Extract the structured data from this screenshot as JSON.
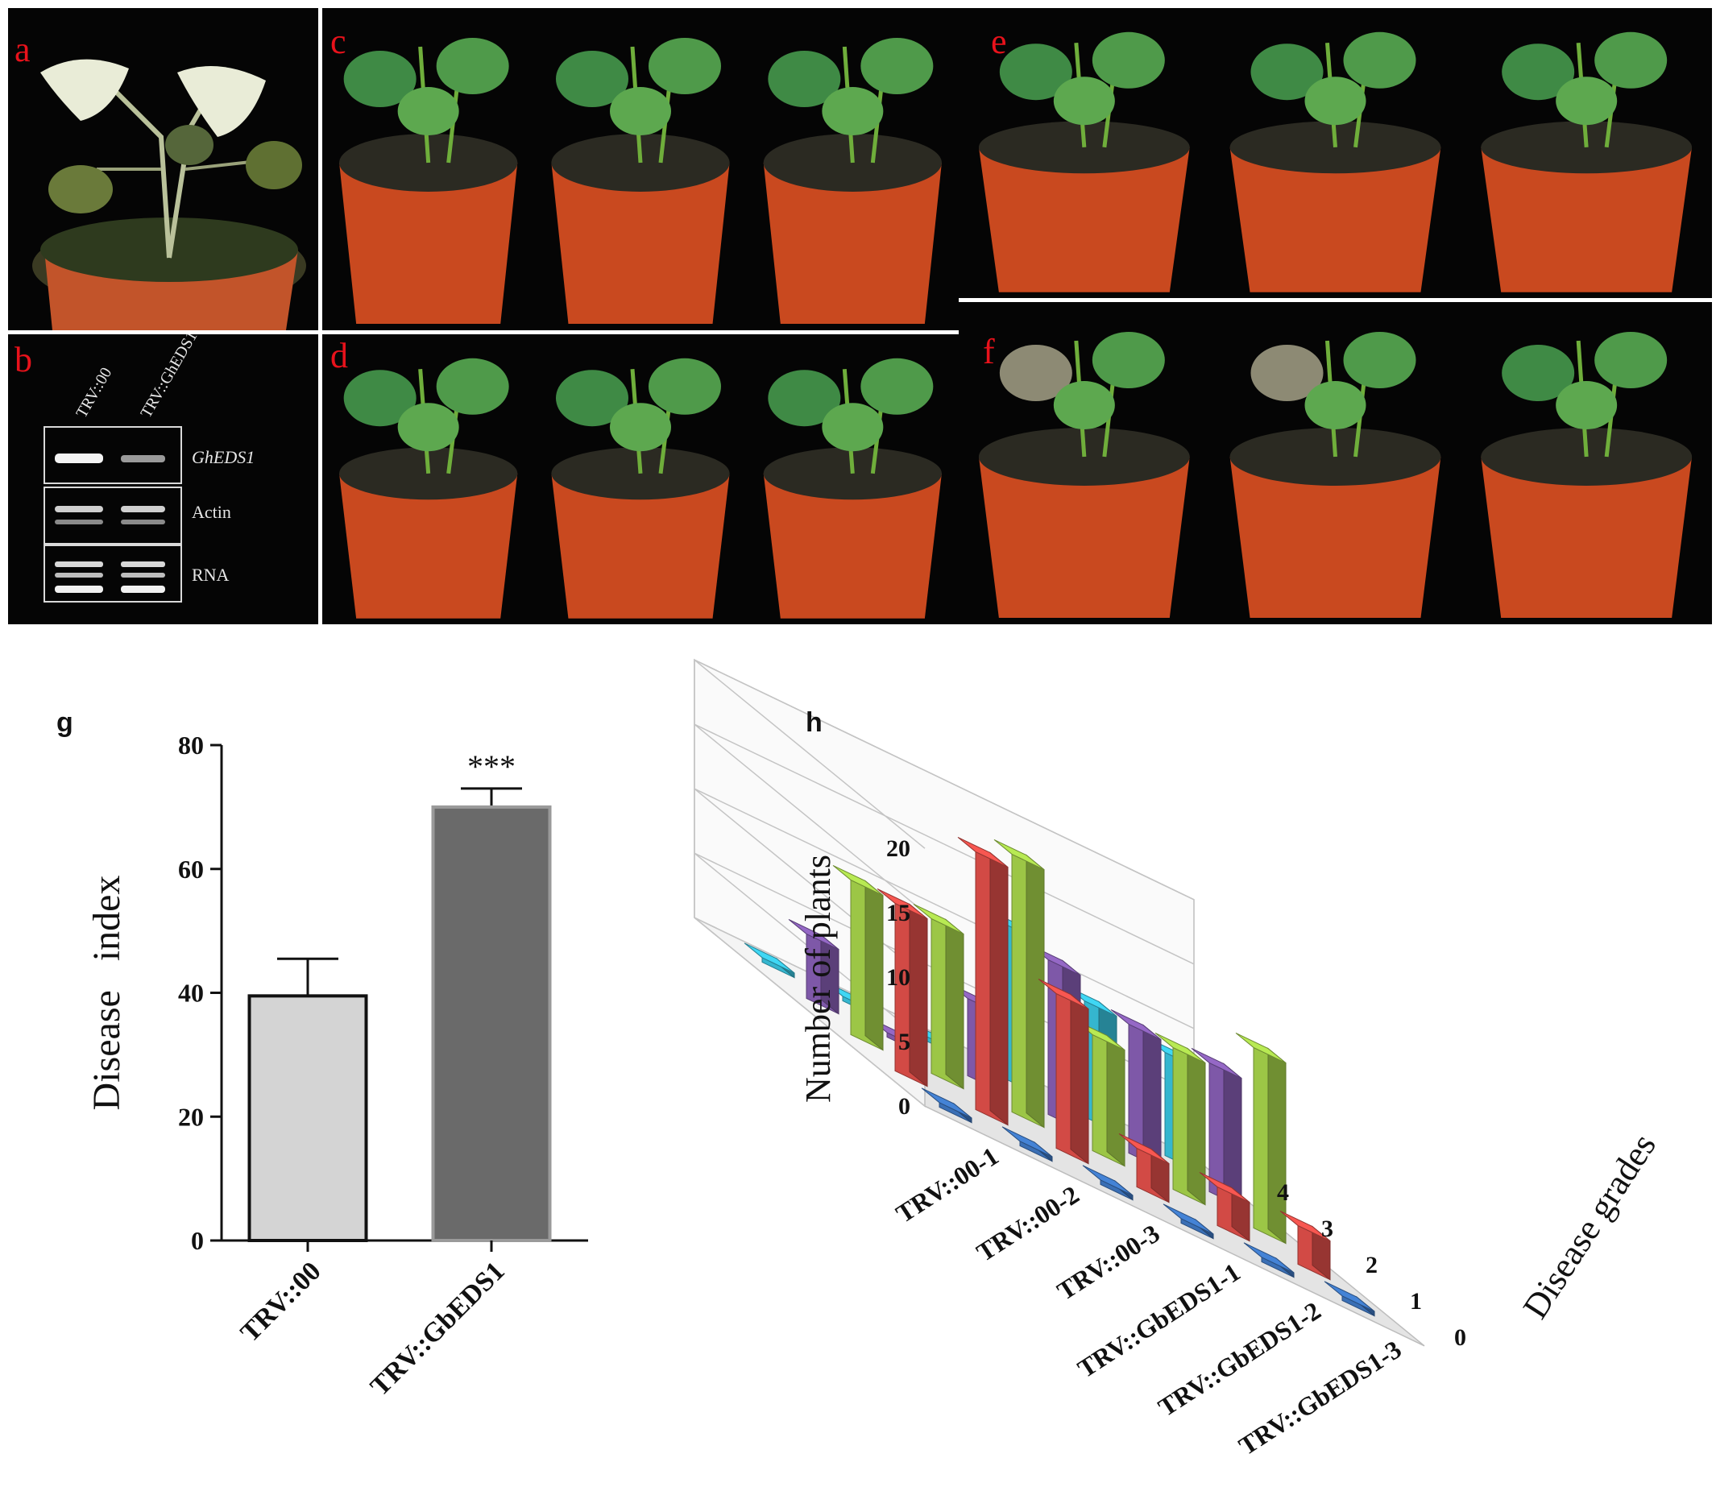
{
  "panels": {
    "a": {
      "label": "a"
    },
    "b": {
      "label": "b",
      "lanes": [
        "TRV::00",
        "TRV::GhEDS1"
      ],
      "rows": [
        "GhEDS1",
        "Actin",
        "RNA"
      ]
    },
    "c": {
      "label": "c"
    },
    "d": {
      "label": "d"
    },
    "e": {
      "label": "e"
    },
    "f": {
      "label": "f"
    }
  },
  "colors": {
    "red_label": "#e8121b",
    "bar_light": "#d4d4d4",
    "bar_dark": "#6a6a6a",
    "g0": "#3a6fb5",
    "g1": "#d24a45",
    "g2": "#9cc646",
    "g3": "#7e58a8",
    "g4": "#35b6cf"
  },
  "chart_data": [
    {
      "panel_label": "g",
      "type": "bar",
      "categories": [
        "TRV::00",
        "TRV::GbEDS1"
      ],
      "values": [
        39.5,
        70
      ],
      "errors": [
        6,
        3
      ],
      "annotations": [
        "",
        "***"
      ],
      "ylabel": "Disease   index",
      "ylim": [
        0,
        80
      ],
      "yticks": [
        0,
        20,
        40,
        60,
        80
      ]
    },
    {
      "panel_label": "h",
      "type": "bar",
      "subtype": "3d-bar",
      "categories": [
        "TRV::00-1",
        "TRV::00-2",
        "TRV::00-3",
        "TRV::GbEDS1-1",
        "TRV::GbEDS1-2",
        "TRV::GbEDS1-3"
      ],
      "zlabel": "Disease grades",
      "ylabel": "Number of plants",
      "ylim": [
        0,
        20
      ],
      "yticks": [
        0,
        5,
        10,
        15,
        20
      ],
      "series": [
        {
          "name": "0",
          "values": [
            0,
            0,
            0,
            0,
            0,
            0
          ]
        },
        {
          "name": "1",
          "values": [
            13,
            20,
            12,
            3,
            3,
            3
          ]
        },
        {
          "name": "2",
          "values": [
            12,
            12,
            20,
            9,
            11,
            14
          ]
        },
        {
          "name": "3",
          "values": [
            5,
            0,
            6,
            12,
            10,
            10
          ]
        },
        {
          "name": "4",
          "values": [
            0,
            0,
            0,
            12,
            9,
            8
          ]
        }
      ],
      "grid": true
    }
  ]
}
